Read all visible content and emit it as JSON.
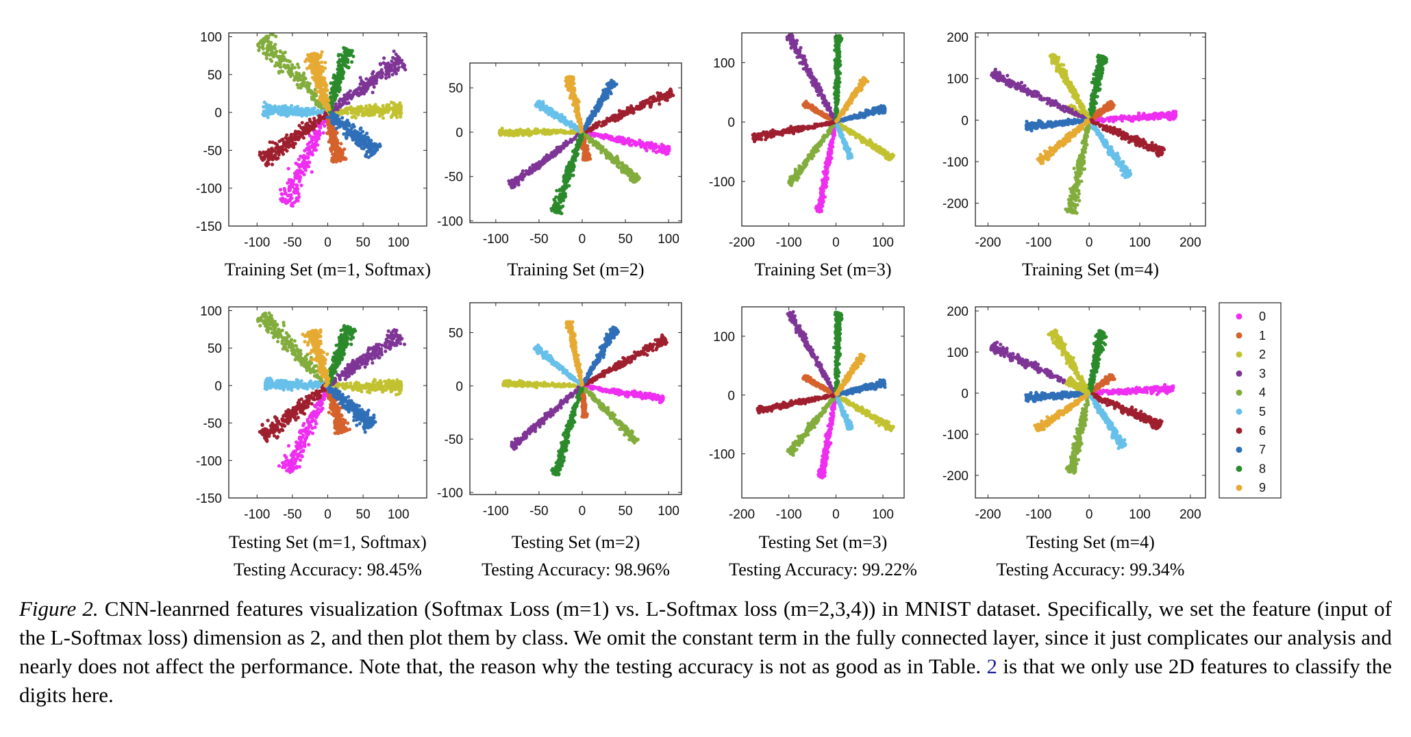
{
  "class_colors": [
    "#ee2ef0",
    "#d5622c",
    "#c2c231",
    "#7e3596",
    "#82ad3d",
    "#66c0ea",
    "#9e1f2e",
    "#2f6fb8",
    "#2b8a2b",
    "#e6aa32"
  ],
  "legend": {
    "labels": [
      "0",
      "1",
      "2",
      "3",
      "4",
      "5",
      "6",
      "7",
      "8",
      "9"
    ]
  },
  "chart_data": [
    {
      "type": "scatter",
      "row": "training",
      "subtitle": "Training Set (m=1, Softmax)",
      "accuracy_text": "",
      "xlim": [
        -140,
        140
      ],
      "ylim": [
        -150,
        105
      ],
      "xticks": [
        -100,
        -50,
        0,
        50,
        100
      ],
      "xtick_labels": [
        "-100",
        "-50",
        "0",
        "50",
        "100"
      ],
      "yticks": [
        -150,
        -100,
        -50,
        0,
        50,
        100
      ],
      "ytick_labels": [
        "-150",
        "-100",
        "-50",
        "0",
        "50",
        "100"
      ],
      "series": [
        {
          "class": 0,
          "tip": [
            -58,
            -115
          ],
          "width": 15
        },
        {
          "class": 1,
          "tip": [
            15,
            -62
          ],
          "width": 10
        },
        {
          "class": 2,
          "tip": [
            100,
            3
          ],
          "width": 10
        },
        {
          "class": 3,
          "tip": [
            100,
            67
          ],
          "width": 13
        },
        {
          "class": 4,
          "tip": [
            -88,
            93
          ],
          "width": 15
        },
        {
          "class": 5,
          "tip": [
            -88,
            3
          ],
          "width": 9
        },
        {
          "class": 6,
          "tip": [
            -88,
            -62
          ],
          "width": 14
        },
        {
          "class": 7,
          "tip": [
            65,
            -50
          ],
          "width": 13
        },
        {
          "class": 8,
          "tip": [
            28,
            80
          ],
          "width": 10
        },
        {
          "class": 9,
          "tip": [
            -20,
            75
          ],
          "width": 12
        }
      ]
    },
    {
      "type": "scatter",
      "row": "training",
      "subtitle": "Training Set (m=2)",
      "accuracy_text": "",
      "xlim": [
        -130,
        115
      ],
      "ylim": [
        -102,
        78
      ],
      "xticks": [
        -100,
        -50,
        0,
        50,
        100
      ],
      "xtick_labels": [
        "-100",
        "-50",
        "0",
        "50",
        "100"
      ],
      "yticks": [
        -100,
        -50,
        0,
        50
      ],
      "ytick_labels": [
        "-100",
        "-50",
        "0",
        "50"
      ],
      "series": [
        {
          "class": 0,
          "tip": [
            97,
            -20
          ],
          "width": 6
        },
        {
          "class": 1,
          "tip": [
            5,
            -30
          ],
          "width": 4
        },
        {
          "class": 2,
          "tip": [
            -92,
            0
          ],
          "width": 5
        },
        {
          "class": 3,
          "tip": [
            -80,
            -58
          ],
          "width": 5
        },
        {
          "class": 4,
          "tip": [
            62,
            -52
          ],
          "width": 6
        },
        {
          "class": 5,
          "tip": [
            -50,
            32
          ],
          "width": 5
        },
        {
          "class": 6,
          "tip": [
            100,
            43
          ],
          "width": 7
        },
        {
          "class": 7,
          "tip": [
            35,
            55
          ],
          "width": 5
        },
        {
          "class": 8,
          "tip": [
            -30,
            -87
          ],
          "width": 7
        },
        {
          "class": 9,
          "tip": [
            -15,
            60
          ],
          "width": 5
        }
      ]
    },
    {
      "type": "scatter",
      "row": "training",
      "subtitle": "Training Set (m=3)",
      "accuracy_text": "",
      "xlim": [
        -200,
        145
      ],
      "ylim": [
        -175,
        150
      ],
      "xticks": [
        -200,
        -100,
        0,
        100
      ],
      "xtick_labels": [
        "-200",
        "-100",
        "0",
        "100"
      ],
      "yticks": [
        -100,
        0,
        100
      ],
      "ytick_labels": [
        "-100",
        "0",
        "100"
      ],
      "series": [
        {
          "class": 0,
          "tip": [
            -35,
            -145
          ],
          "width": 6
        },
        {
          "class": 1,
          "tip": [
            -65,
            30
          ],
          "width": 4
        },
        {
          "class": 2,
          "tip": [
            115,
            -58
          ],
          "width": 6
        },
        {
          "class": 3,
          "tip": [
            -95,
            140
          ],
          "width": 7
        },
        {
          "class": 4,
          "tip": [
            -95,
            -100
          ],
          "width": 6
        },
        {
          "class": 5,
          "tip": [
            30,
            -58
          ],
          "width": 4
        },
        {
          "class": 6,
          "tip": [
            -170,
            -25
          ],
          "width": 6
        },
        {
          "class": 7,
          "tip": [
            100,
            22
          ],
          "width": 6
        },
        {
          "class": 8,
          "tip": [
            5,
            140
          ],
          "width": 6
        },
        {
          "class": 9,
          "tip": [
            60,
            70
          ],
          "width": 5
        }
      ]
    },
    {
      "type": "scatter",
      "row": "training",
      "subtitle": "Training Set (m=4)",
      "accuracy_text": "",
      "xlim": [
        -225,
        230
      ],
      "ylim": [
        -255,
        210
      ],
      "xticks": [
        -200,
        -100,
        0,
        100,
        200
      ],
      "xtick_labels": [
        "-200",
        "-100",
        "0",
        "100",
        "200"
      ],
      "yticks": [
        -200,
        -100,
        0,
        100,
        200
      ],
      "ytick_labels": [
        "-200",
        "-100",
        "0",
        "100",
        "200"
      ],
      "series": [
        {
          "class": 0,
          "tip": [
            165,
            12
          ],
          "width": 5
        },
        {
          "class": 1,
          "tip": [
            45,
            38
          ],
          "width": 4
        },
        {
          "class": 2,
          "tip": [
            -40,
            30
          ],
          "width": 4
        },
        {
          "class": 3,
          "tip": [
            -185,
            108
          ],
          "width": 6
        },
        {
          "class": 4,
          "tip": [
            -35,
            -215
          ],
          "width": 6
        },
        {
          "class": 5,
          "tip": [
            75,
            -130
          ],
          "width": 5
        },
        {
          "class": 6,
          "tip": [
            140,
            -75
          ],
          "width": 6
        },
        {
          "class": 7,
          "tip": [
            -120,
            -15
          ],
          "width": 5
        },
        {
          "class": 8,
          "tip": [
            25,
            148
          ],
          "width": 6
        },
        {
          "class": 9,
          "tip": [
            -95,
            -95
          ],
          "width": 5
        },
        {
          "class": 2,
          "tip": [
            -70,
            152
          ],
          "width": 5
        }
      ]
    },
    {
      "type": "scatter",
      "row": "testing",
      "subtitle": "Testing Set (m=1, Softmax)",
      "accuracy_text": "Testing Accuracy: 98.45%",
      "xlim": [
        -140,
        140
      ],
      "ylim": [
        -150,
        105
      ],
      "xticks": [
        -100,
        -50,
        0,
        50,
        100
      ],
      "xtick_labels": [
        "-100",
        "-50",
        "0",
        "50",
        "100"
      ],
      "yticks": [
        -150,
        -100,
        -50,
        0,
        50,
        100
      ],
      "ytick_labels": [
        "-150",
        "-100",
        "-50",
        "0",
        "50",
        "100"
      ],
      "series": [
        {
          "class": 0,
          "tip": [
            -55,
            -110
          ],
          "width": 13
        },
        {
          "class": 1,
          "tip": [
            20,
            -60
          ],
          "width": 9
        },
        {
          "class": 2,
          "tip": [
            100,
            -2
          ],
          "width": 10
        },
        {
          "class": 3,
          "tip": [
            98,
            65
          ],
          "width": 12
        },
        {
          "class": 4,
          "tip": [
            -90,
            90
          ],
          "width": 14
        },
        {
          "class": 5,
          "tip": [
            -85,
            2
          ],
          "width": 8
        },
        {
          "class": 6,
          "tip": [
            -88,
            -65
          ],
          "width": 13
        },
        {
          "class": 7,
          "tip": [
            60,
            -52
          ],
          "width": 12
        },
        {
          "class": 8,
          "tip": [
            30,
            75
          ],
          "width": 10
        },
        {
          "class": 9,
          "tip": [
            -22,
            70
          ],
          "width": 11
        }
      ]
    },
    {
      "type": "scatter",
      "row": "testing",
      "subtitle": "Testing Set (m=2)",
      "accuracy_text": "Testing Accuracy: 98.96%",
      "xlim": [
        -130,
        115
      ],
      "ylim": [
        -102,
        78
      ],
      "xticks": [
        -100,
        -50,
        0,
        50,
        100
      ],
      "xtick_labels": [
        "-100",
        "-50",
        "0",
        "50",
        "100"
      ],
      "yticks": [
        -100,
        -50,
        0,
        50
      ],
      "ytick_labels": [
        "-100",
        "-50",
        "0",
        "50"
      ],
      "series": [
        {
          "class": 0,
          "tip": [
            90,
            -12
          ],
          "width": 5
        },
        {
          "class": 1,
          "tip": [
            3,
            -28
          ],
          "width": 3
        },
        {
          "class": 2,
          "tip": [
            -88,
            2
          ],
          "width": 4
        },
        {
          "class": 3,
          "tip": [
            -78,
            -55
          ],
          "width": 5
        },
        {
          "class": 4,
          "tip": [
            60,
            -50
          ],
          "width": 5
        },
        {
          "class": 5,
          "tip": [
            -52,
            35
          ],
          "width": 4
        },
        {
          "class": 6,
          "tip": [
            93,
            42
          ],
          "width": 6
        },
        {
          "class": 7,
          "tip": [
            37,
            52
          ],
          "width": 5
        },
        {
          "class": 8,
          "tip": [
            -30,
            -80
          ],
          "width": 6
        },
        {
          "class": 9,
          "tip": [
            -15,
            58
          ],
          "width": 4
        }
      ]
    },
    {
      "type": "scatter",
      "row": "testing",
      "subtitle": "Testing Set (m=3)",
      "accuracy_text": "Testing Accuracy: 99.22%",
      "xlim": [
        -200,
        145
      ],
      "ylim": [
        -175,
        150
      ],
      "xticks": [
        -200,
        -100,
        0,
        100
      ],
      "xtick_labels": [
        "-200",
        "-100",
        "0",
        "100"
      ],
      "yticks": [
        -100,
        0,
        100
      ],
      "ytick_labels": [
        "-100",
        "0",
        "100"
      ],
      "series": [
        {
          "class": 0,
          "tip": [
            -30,
            -135
          ],
          "width": 6
        },
        {
          "class": 1,
          "tip": [
            -65,
            30
          ],
          "width": 4
        },
        {
          "class": 2,
          "tip": [
            115,
            -55
          ],
          "width": 6
        },
        {
          "class": 3,
          "tip": [
            -95,
            135
          ],
          "width": 6
        },
        {
          "class": 4,
          "tip": [
            -95,
            -95
          ],
          "width": 6
        },
        {
          "class": 5,
          "tip": [
            30,
            -55
          ],
          "width": 4
        },
        {
          "class": 6,
          "tip": [
            -160,
            -25
          ],
          "width": 6
        },
        {
          "class": 7,
          "tip": [
            100,
            20
          ],
          "width": 6
        },
        {
          "class": 8,
          "tip": [
            5,
            135
          ],
          "width": 6
        },
        {
          "class": 9,
          "tip": [
            55,
            65
          ],
          "width": 5
        }
      ]
    },
    {
      "type": "scatter",
      "row": "testing",
      "subtitle": "Testing Set (m=4)",
      "accuracy_text": "Testing Accuracy: 99.34%",
      "xlim": [
        -225,
        230
      ],
      "ylim": [
        -255,
        210
      ],
      "xticks": [
        -200,
        -100,
        0,
        100,
        200
      ],
      "xtick_labels": [
        "-200",
        "-100",
        "0",
        "100",
        "200"
      ],
      "yticks": [
        -200,
        -100,
        0,
        100,
        200
      ],
      "ytick_labels": [
        "-200",
        "-100",
        "0",
        "100",
        "200"
      ],
      "series": [
        {
          "class": 0,
          "tip": [
            160,
            10
          ],
          "width": 5
        },
        {
          "class": 1,
          "tip": [
            45,
            40
          ],
          "width": 4
        },
        {
          "class": 2,
          "tip": [
            -70,
            145
          ],
          "width": 5
        },
        {
          "class": 3,
          "tip": [
            -185,
            110
          ],
          "width": 6
        },
        {
          "class": 4,
          "tip": [
            -35,
            -185
          ],
          "width": 6
        },
        {
          "class": 5,
          "tip": [
            65,
            -125
          ],
          "width": 5
        },
        {
          "class": 6,
          "tip": [
            135,
            -75
          ],
          "width": 6
        },
        {
          "class": 7,
          "tip": [
            -120,
            -10
          ],
          "width": 5
        },
        {
          "class": 8,
          "tip": [
            25,
            145
          ],
          "width": 6
        },
        {
          "class": 9,
          "tip": [
            -100,
            -85
          ],
          "width": 5
        },
        {
          "class": 2,
          "tip": [
            -40,
            30
          ],
          "width": 4
        }
      ]
    }
  ],
  "caption": {
    "figure_label": "Figure 2.",
    "text_1": " CNN-leanrned features visualization (Softmax Loss (m=1) vs.  L-Softmax loss (m=2,3,4)) in MNIST dataset.  Specifically, we set the feature (input of the L-Softmax loss) dimension as 2, and then plot them by class.  We omit the constant term in the fully connected layer, since it just complicates our analysis and nearly does not affect the performance. Note that, the reason why the testing accuracy is not as good as in Table. ",
    "table_ref": "2",
    "text_2": " is that we only use 2D features to classify the digits here."
  }
}
